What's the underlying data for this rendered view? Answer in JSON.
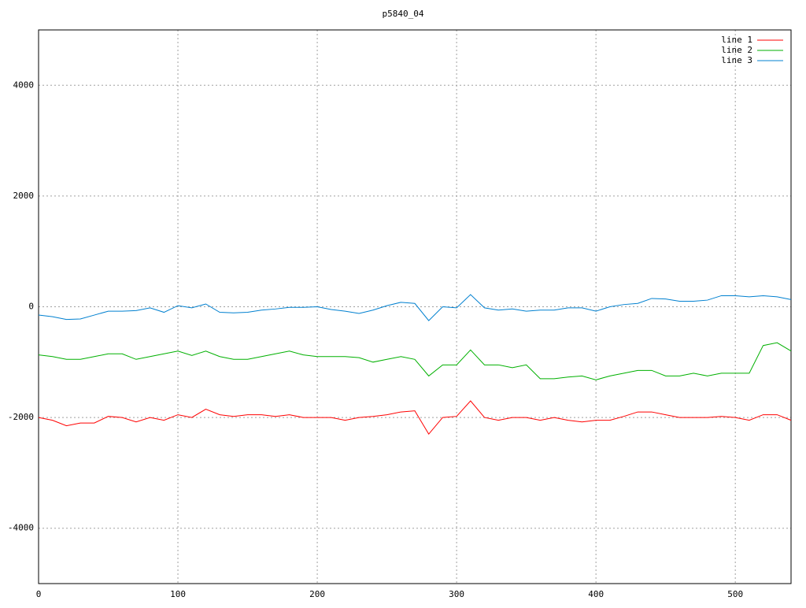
{
  "chart_data": {
    "type": "line",
    "title": "p5840_04",
    "x": [
      0,
      10,
      20,
      30,
      40,
      50,
      60,
      70,
      80,
      90,
      100,
      110,
      120,
      130,
      140,
      150,
      160,
      170,
      180,
      190,
      200,
      210,
      220,
      230,
      240,
      250,
      260,
      270,
      280,
      290,
      300,
      310,
      320,
      330,
      340,
      350,
      360,
      370,
      380,
      390,
      400,
      410,
      420,
      430,
      440,
      450,
      460,
      470,
      480,
      490,
      500,
      510,
      520,
      530,
      540
    ],
    "series": [
      {
        "name": "line 1",
        "color": "#ff0000",
        "values": [
          -2000,
          -2050,
          -2150,
          -2100,
          -2100,
          -1980,
          -2000,
          -2080,
          -2000,
          -2050,
          -1950,
          -2000,
          -1850,
          -1950,
          -1980,
          -1950,
          -1950,
          -1980,
          -1950,
          -2000,
          -2000,
          -2000,
          -2050,
          -2000,
          -1980,
          -1950,
          -1900,
          -1880,
          -2300,
          -2000,
          -1980,
          -1700,
          -2000,
          -2050,
          -2000,
          -2000,
          -2050,
          -2000,
          -2050,
          -2080,
          -2050,
          -2050,
          -1980,
          -1900,
          -1900,
          -1950,
          -2000,
          -2000,
          -2000,
          -1980,
          -2000,
          -2050,
          -1950,
          -1950,
          -2050
        ]
      },
      {
        "name": "line 2",
        "color": "#00b000",
        "values": [
          -870,
          -900,
          -950,
          -950,
          -900,
          -850,
          -850,
          -950,
          -900,
          -850,
          -800,
          -880,
          -800,
          -900,
          -950,
          -950,
          -900,
          -850,
          -800,
          -870,
          -900,
          -900,
          -900,
          -920,
          -1000,
          -950,
          -900,
          -950,
          -1250,
          -1050,
          -1050,
          -780,
          -1050,
          -1050,
          -1100,
          -1050,
          -1300,
          -1300,
          -1270,
          -1250,
          -1320,
          -1250,
          -1200,
          -1150,
          -1150,
          -1250,
          -1250,
          -1200,
          -1250,
          -1200,
          -1200,
          -1200,
          -700,
          -650,
          -800
        ]
      },
      {
        "name": "line 3",
        "color": "#0080d0",
        "values": [
          -150,
          -180,
          -230,
          -220,
          -150,
          -80,
          -80,
          -70,
          -20,
          -100,
          20,
          -20,
          50,
          -100,
          -110,
          -100,
          -60,
          -40,
          -10,
          -10,
          0,
          -50,
          -80,
          -120,
          -60,
          20,
          80,
          60,
          -250,
          0,
          -20,
          220,
          -20,
          -60,
          -40,
          -80,
          -60,
          -60,
          -20,
          -20,
          -80,
          0,
          40,
          60,
          150,
          140,
          100,
          100,
          120,
          200,
          200,
          180,
          200,
          180,
          130
        ]
      }
    ],
    "xlim": [
      0,
      540
    ],
    "ylim": [
      -5000,
      5000
    ],
    "xticks": [
      0,
      100,
      200,
      300,
      400,
      500
    ],
    "yticks": [
      -4000,
      -2000,
      0,
      2000,
      4000
    ],
    "grid": true,
    "legend": "top-right"
  }
}
